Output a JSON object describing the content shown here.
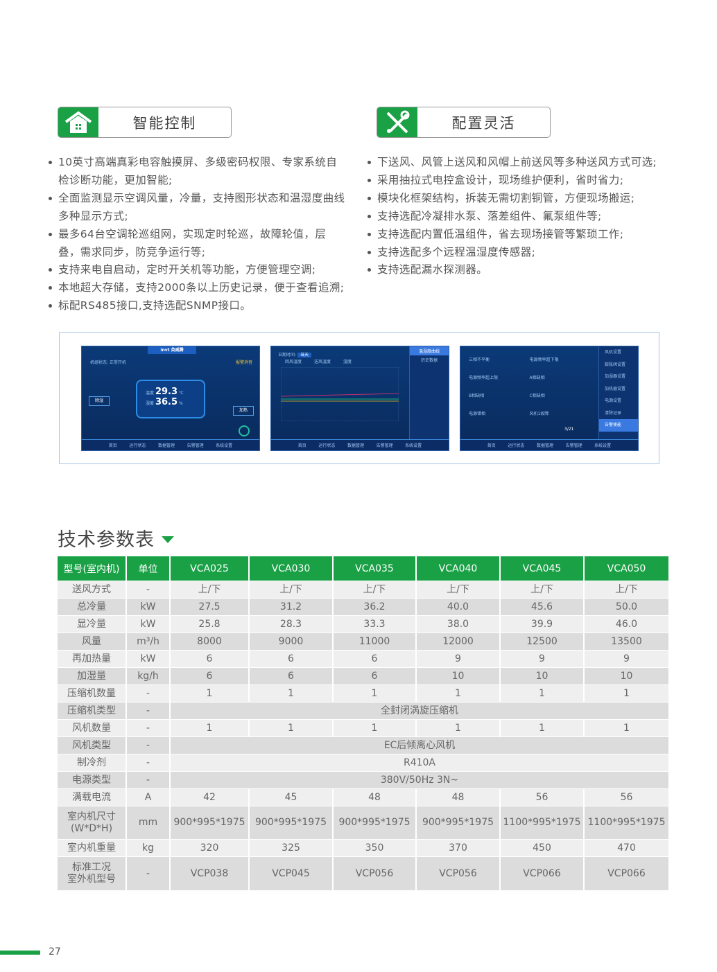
{
  "features": {
    "left": {
      "title": "智能控制",
      "icon": "house-icon",
      "bullets": [
        "10英寸高端真彩电容触摸屏、多级密码权限、专家系统自检诊断功能，更加智能;",
        "全面监测显示空调风量，冷量，支持图形状态和温湿度曲线多种显示方式;",
        "最多64台空调轮巡组网，实现定时轮巡，故障轮值，层叠，需求同步，防竞争运行等;",
        "支持来电自启动，定时开关机等功能，方便管理空调;",
        "本地超大存储，支持2000条以上历史记录，便于查看追溯;",
        "标配RS485接口,支持选配SNMP接口。"
      ]
    },
    "right": {
      "title": "配置灵活",
      "icon": "tools-icon",
      "bullets": [
        "下送风、风管上送风和风帽上前送风等多种送风方式可选;",
        "采用抽拉式电控盒设计，现场维护便利，省时省力;",
        "模块化框架结构，拆装无需切割铜管，方便现场搬运;",
        "支持选配冷凝排水泵、落差组件、氟泵组件等;",
        "支持选配内置低温组件，省去现场接管等繁琐工作;",
        "支持选配多个远程温湿度传感器;",
        "支持选配漏水探测器。"
      ]
    }
  },
  "screens": {
    "nav": [
      "首页",
      "运行状态",
      "数据管理",
      "告警管理",
      "系统设置"
    ],
    "home": {
      "logo": "invt 英威腾",
      "status": "机组状态: 正常开机",
      "alarm": "报警消音",
      "temp_label": "温度",
      "temp": "29.3",
      "temp_unit": "℃",
      "hum_label": "湿度",
      "hum": "36.5",
      "hum_unit": "%",
      "btn_heat": "加热",
      "btn_dehum": "除湿"
    },
    "curve": {
      "date_label": "日期时间:",
      "today": "当天",
      "menu": [
        "温湿度曲线",
        "历史数据"
      ],
      "legend": [
        "回风温度",
        "送风温度",
        "湿度"
      ]
    },
    "settings": {
      "items": [
        "三相不平衡",
        "电源频率超下限",
        "电源频率超上限",
        "A相缺相",
        "B相缺相",
        "C相缺相",
        "电源错相",
        "风机1故障"
      ],
      "page": "3/21",
      "menu": [
        "风机设置",
        "膨胀阀设置",
        "加湿器设置",
        "加热器设置",
        "电源设置",
        "清除记录",
        "告警使能"
      ]
    }
  },
  "section_title": "技术参数表",
  "table": {
    "headers": [
      "型号(室内机)",
      "单位",
      "VCA025",
      "VCA030",
      "VCA035",
      "VCA040",
      "VCA045",
      "VCA050"
    ],
    "rows": [
      {
        "cells": [
          "送风方式",
          "-",
          "上/下",
          "上/下",
          "上/下",
          "上/下",
          "上/下",
          "上/下"
        ]
      },
      {
        "cells": [
          "总冷量",
          "kW",
          "27.5",
          "31.2",
          "36.2",
          "40.0",
          "45.6",
          "50.0"
        ]
      },
      {
        "cells": [
          "显冷量",
          "kW",
          "25.8",
          "28.3",
          "33.3",
          "38.0",
          "39.9",
          "46.0"
        ]
      },
      {
        "cells": [
          "风量",
          "m³/h",
          "8000",
          "9000",
          "11000",
          "12000",
          "12500",
          "13500"
        ]
      },
      {
        "cells": [
          "再加热量",
          "kW",
          "6",
          "6",
          "6",
          "9",
          "9",
          "9"
        ]
      },
      {
        "cells": [
          "加湿量",
          "kg/h",
          "6",
          "6",
          "6",
          "10",
          "10",
          "10"
        ]
      },
      {
        "cells": [
          "压缩机数量",
          "-",
          "1",
          "1",
          "1",
          "1",
          "1",
          "1"
        ]
      },
      {
        "cells": [
          "压缩机类型",
          "-",
          "全封闭涡旋压缩机"
        ]
      },
      {
        "cells": [
          "风机数量",
          "-",
          "1",
          "1",
          "1",
          "1",
          "1",
          "1"
        ]
      },
      {
        "cells": [
          "风机类型",
          "-",
          "EC后倾离心风机"
        ]
      },
      {
        "cells": [
          "制冷剂",
          "-",
          "R410A"
        ]
      },
      {
        "cells": [
          "电源类型",
          "-",
          "380V/50Hz 3N~"
        ]
      },
      {
        "cells": [
          "满载电流",
          "A",
          "42",
          "45",
          "48",
          "48",
          "56",
          "56"
        ]
      },
      {
        "cells": [
          "室内机尺寸\n(W*D*H)",
          "mm",
          "900*995*1975",
          "900*995*1975",
          "900*995*1975",
          "900*995*1975",
          "1100*995*1975",
          "1100*995*1975"
        ]
      },
      {
        "cells": [
          "室内机重量",
          "kg",
          "320",
          "325",
          "350",
          "370",
          "450",
          "470"
        ]
      },
      {
        "cells": [
          "标准工况\n室外机型号",
          "-",
          "VCP038",
          "VCP045",
          "VCP056",
          "VCP056",
          "VCP066",
          "VCP066"
        ]
      }
    ]
  },
  "page_number": "27",
  "colors": {
    "brand_green": "#1aa146",
    "screen_blue": "#0b3a78"
  }
}
